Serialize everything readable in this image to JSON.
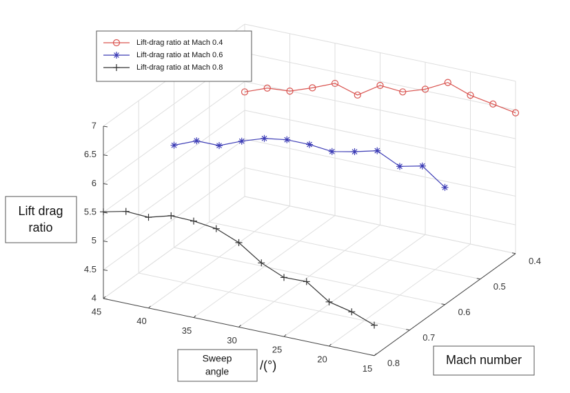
{
  "chart_data": {
    "type": "line",
    "x_label_lines": [
      "Sweep",
      "angle"
    ],
    "x_unit": "/(°)",
    "y_label": "Mach number",
    "z_label_lines": [
      "Lift drag",
      "ratio"
    ],
    "x": [
      45,
      42.5,
      40,
      37.5,
      35,
      32.5,
      30,
      27.5,
      25,
      22.5,
      20,
      17.5,
      15
    ],
    "xlim": [
      15,
      45
    ],
    "ylim": [
      0.4,
      0.8
    ],
    "zlim": [
      4,
      7
    ],
    "xticks": [
      45,
      40,
      35,
      30,
      25,
      20,
      15
    ],
    "yticks": [
      0.4,
      0.5,
      0.6,
      0.7,
      0.8
    ],
    "zticks": [
      4,
      4.5,
      5,
      5.5,
      6,
      6.5,
      7
    ],
    "grid": true,
    "legend": "upper left",
    "series": [
      {
        "name": "Lift-drag ratio at Mach 0.4",
        "color": "#d9534f",
        "marker": "circle",
        "mach": 0.4,
        "values": [
          5.82,
          5.97,
          6.0,
          6.14,
          6.3,
          6.18,
          6.43,
          6.4,
          6.53,
          6.73,
          6.59,
          6.52,
          6.45
        ]
      },
      {
        "name": "Lift-drag ratio at Mach 0.6",
        "color": "#3b3bb5",
        "marker": "asterisk",
        "mach": 0.6,
        "values": [
          5.78,
          5.94,
          5.94,
          6.1,
          6.23,
          6.29,
          6.29,
          6.25,
          6.33,
          6.43,
          6.24,
          6.33,
          6.04
        ]
      },
      {
        "name": "Lift-drag ratio at Mach 0.8",
        "color": "#333333",
        "marker": "plus",
        "mach": 0.8,
        "values": [
          5.51,
          5.6,
          5.58,
          5.69,
          5.68,
          5.63,
          5.47,
          5.2,
          5.03,
          5.04,
          4.77,
          4.68,
          4.53
        ]
      }
    ]
  }
}
